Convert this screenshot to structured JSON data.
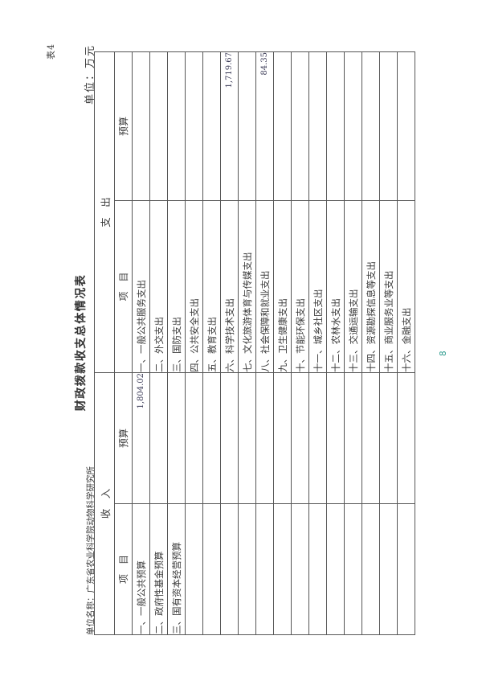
{
  "page": {
    "table_tag": "表4",
    "title": "财政拨款收支总体情况表",
    "unit_name_label": "单位名称：广东省农业科学院动物科学研究所",
    "unit_label": "单位：万元",
    "page_number": "8",
    "rotation_note": "original landscape page shown rotated 90deg counter-clockwise"
  },
  "table": {
    "header_income": "收　入",
    "header_expenditure": "支　出",
    "col_item": "项　目",
    "col_budget": "预算",
    "rows": [
      {
        "income_item": "一、一般公共预算",
        "income_budget": "1,804.02",
        "expense_item": "一、一般公共服务支出",
        "expense_budget": ""
      },
      {
        "income_item": "二、政府性基金预算",
        "income_budget": "",
        "expense_item": "二、外交支出",
        "expense_budget": ""
      },
      {
        "income_item": "三、国有资本经营预算",
        "income_budget": "",
        "expense_item": "三、国防支出",
        "expense_budget": ""
      },
      {
        "income_item": "",
        "income_budget": "",
        "expense_item": "四、公共安全支出",
        "expense_budget": ""
      },
      {
        "income_item": "",
        "income_budget": "",
        "expense_item": "五、教育支出",
        "expense_budget": ""
      },
      {
        "income_item": "",
        "income_budget": "",
        "expense_item": "六、科学技术支出",
        "expense_budget": "1,719.67"
      },
      {
        "income_item": "",
        "income_budget": "",
        "expense_item": "七、文化旅游体育与传媒支出",
        "expense_budget": ""
      },
      {
        "income_item": "",
        "income_budget": "",
        "expense_item": "八、社会保障和就业支出",
        "expense_budget": "84.35"
      },
      {
        "income_item": "",
        "income_budget": "",
        "expense_item": "九、卫生健康支出",
        "expense_budget": ""
      },
      {
        "income_item": "",
        "income_budget": "",
        "expense_item": "十、节能环保支出",
        "expense_budget": ""
      },
      {
        "income_item": "",
        "income_budget": "",
        "expense_item": "十一、城乡社区支出",
        "expense_budget": ""
      },
      {
        "income_item": "",
        "income_budget": "",
        "expense_item": "十二、农林水支出",
        "expense_budget": ""
      },
      {
        "income_item": "",
        "income_budget": "",
        "expense_item": "十三、交通运输支出",
        "expense_budget": ""
      },
      {
        "income_item": "",
        "income_budget": "",
        "expense_item": "十四、资源勘探信息等支出",
        "expense_budget": ""
      },
      {
        "income_item": "",
        "income_budget": "",
        "expense_item": "十五、商业服务业等支出",
        "expense_budget": ""
      },
      {
        "income_item": "",
        "income_budget": "",
        "expense_item": "十六、金融支出",
        "expense_budget": ""
      }
    ]
  },
  "colors": {
    "text": "#3a3a3a",
    "grid_line": "#565656",
    "number_text": "#41415c",
    "page_number": "#2f9c8f",
    "background": "#ffffff"
  }
}
